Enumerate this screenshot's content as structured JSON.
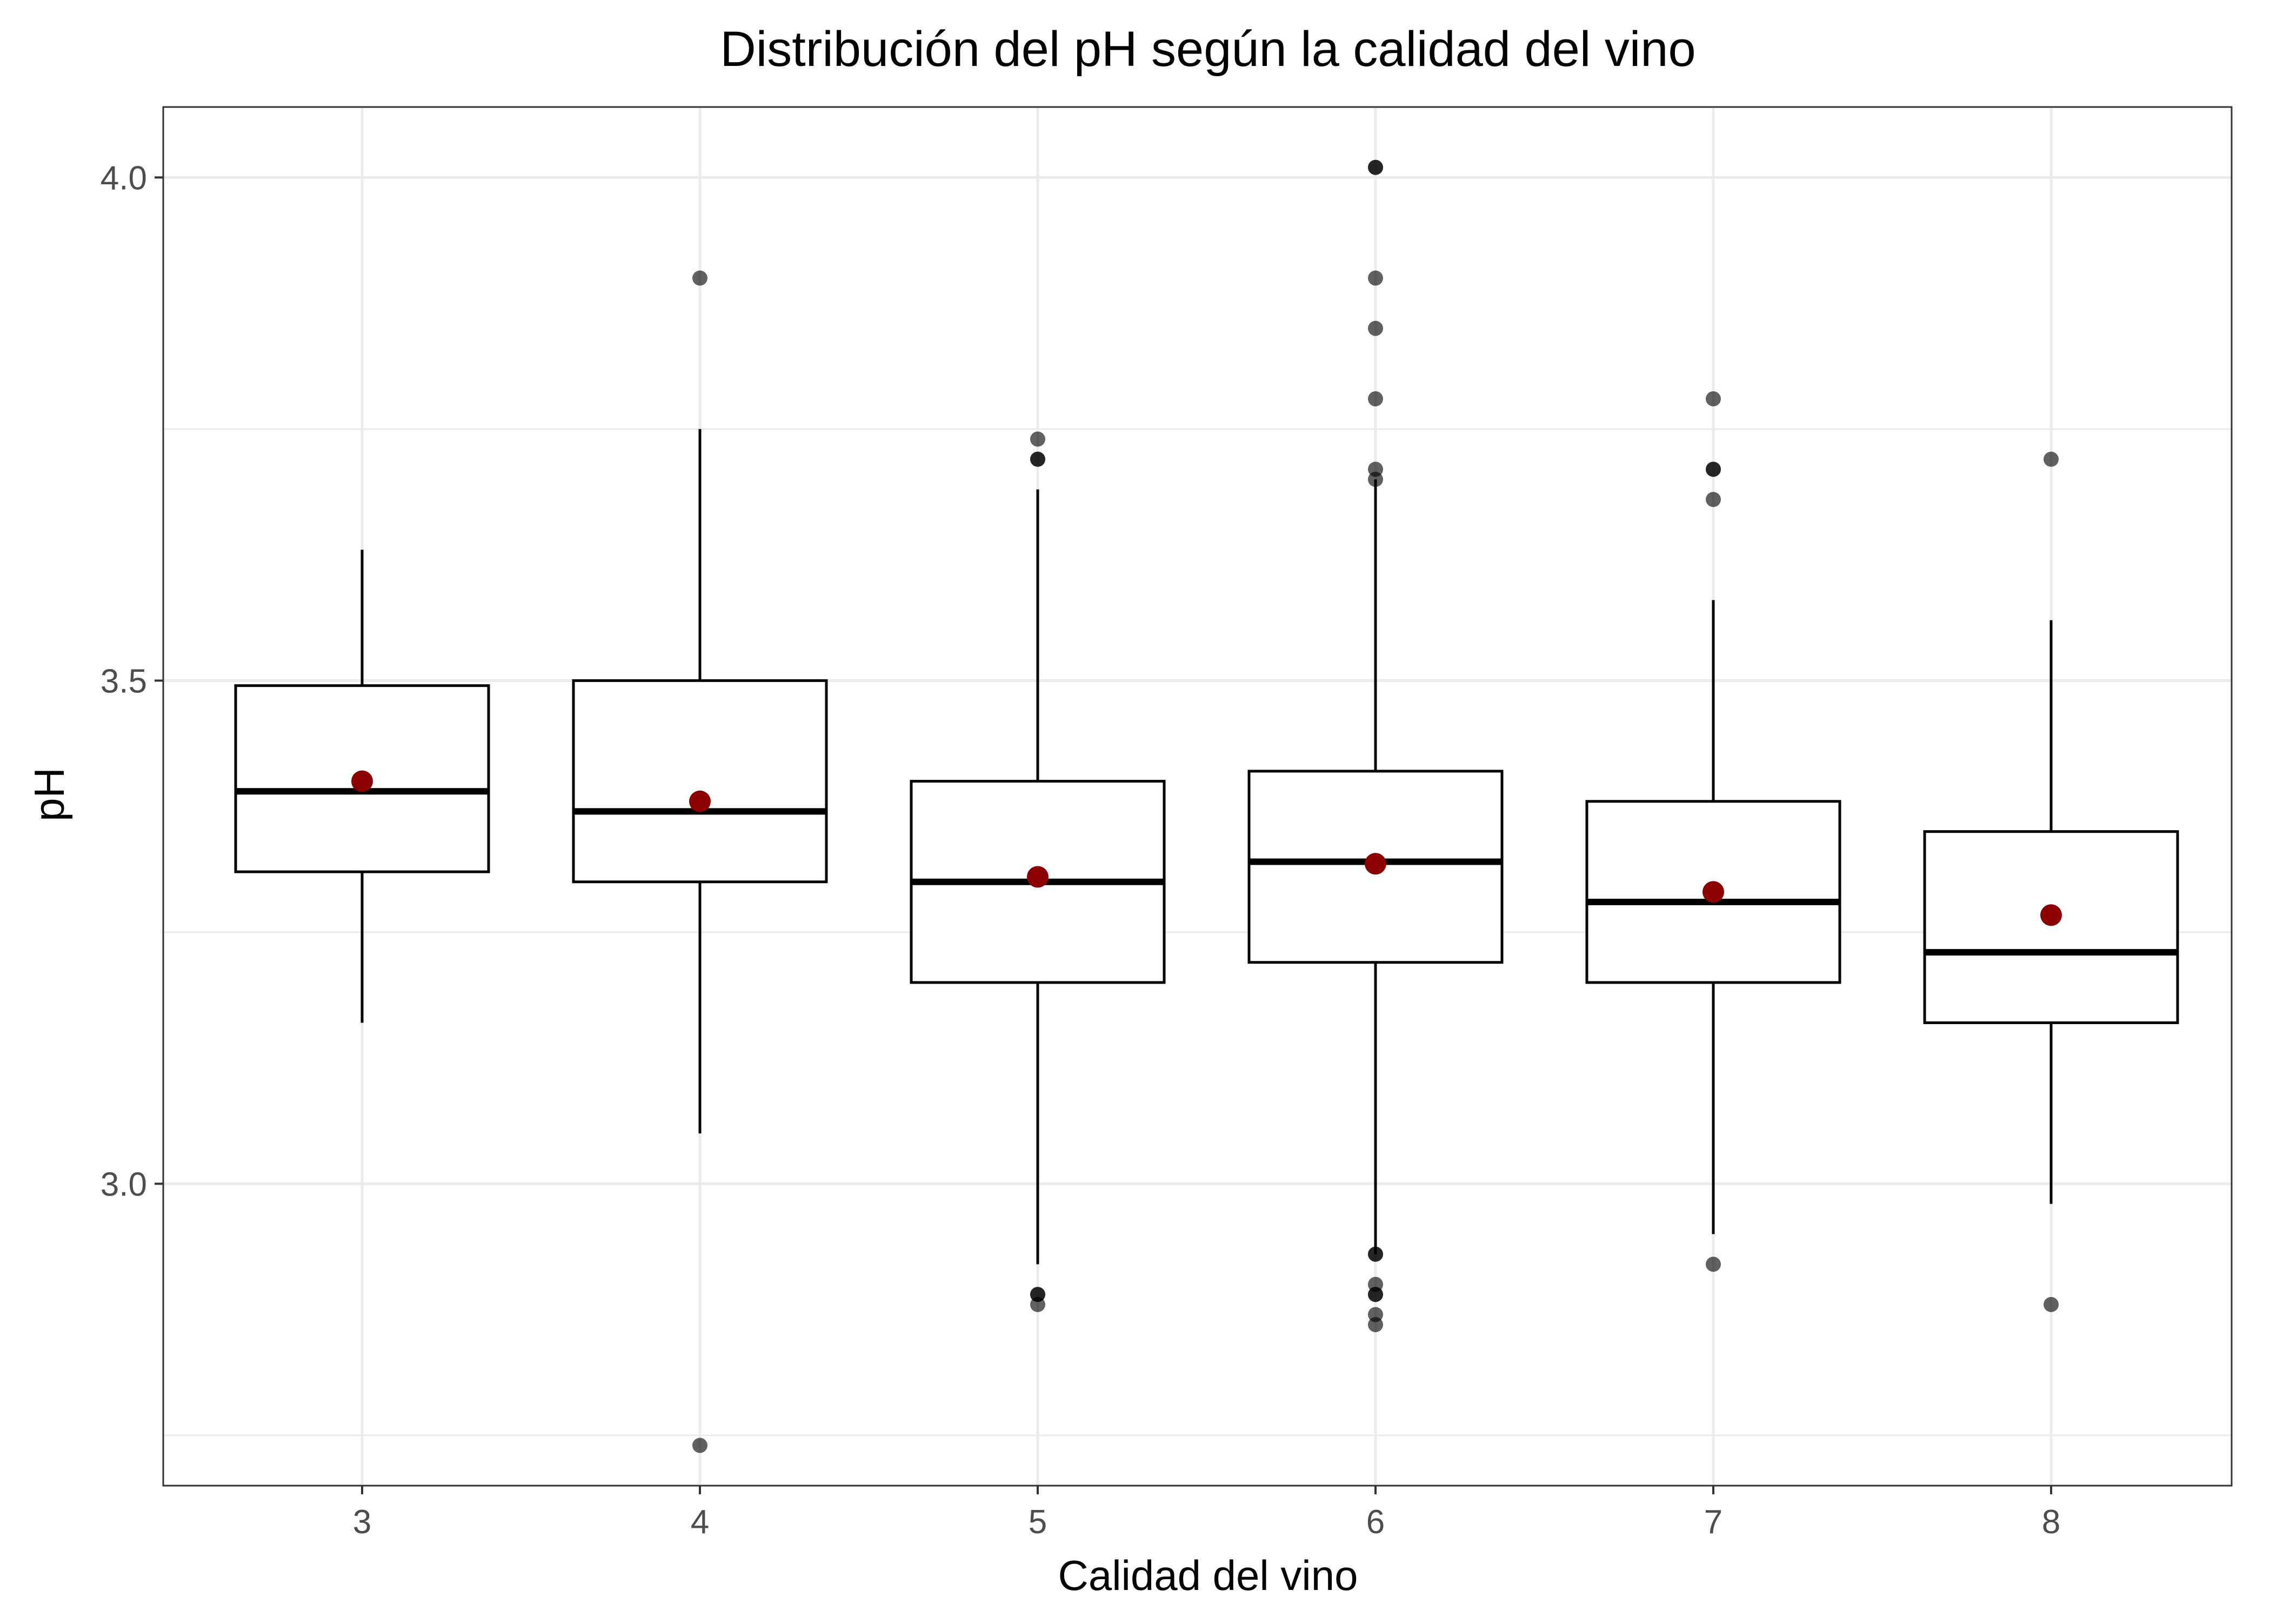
{
  "chart_data": {
    "type": "boxplot",
    "title": "Distribución del pH según la calidad del vino",
    "xlabel": "Calidad del vino",
    "ylabel": "pH",
    "categories": [
      "3",
      "4",
      "5",
      "6",
      "7",
      "8"
    ],
    "ylim": [
      2.7,
      4.07
    ],
    "yticks": [
      3.0,
      3.5,
      4.0
    ],
    "ytick_labels": [
      "3.0",
      "3.5",
      "4.0"
    ],
    "grid": true,
    "legend": "none",
    "boxes": [
      {
        "category": "3",
        "whisker_low": 3.16,
        "q1": 3.31,
        "median": 3.39,
        "q3": 3.495,
        "whisker_high": 3.63,
        "mean": 3.4,
        "outliers": []
      },
      {
        "category": "4",
        "whisker_low": 3.05,
        "q1": 3.3,
        "median": 3.37,
        "q3": 3.5,
        "whisker_high": 3.75,
        "mean": 3.38,
        "outliers": [
          2.74,
          3.9
        ]
      },
      {
        "category": "5",
        "whisker_low": 2.92,
        "q1": 3.2,
        "median": 3.3,
        "q3": 3.4,
        "whisker_high": 3.69,
        "mean": 3.305,
        "outliers": [
          2.88,
          2.89,
          2.89,
          3.72,
          3.72,
          3.74
        ]
      },
      {
        "category": "6",
        "whisker_low": 2.93,
        "q1": 3.22,
        "median": 3.32,
        "q3": 3.41,
        "whisker_high": 3.7,
        "mean": 3.318,
        "outliers": [
          2.86,
          2.87,
          2.89,
          2.89,
          2.9,
          2.93,
          2.93,
          3.7,
          3.71,
          3.78,
          3.85,
          3.9,
          4.01,
          4.01
        ]
      },
      {
        "category": "7",
        "whisker_low": 2.95,
        "q1": 3.2,
        "median": 3.28,
        "q3": 3.38,
        "whisker_high": 3.58,
        "mean": 3.29,
        "outliers": [
          2.92,
          3.68,
          3.71,
          3.71,
          3.78
        ]
      },
      {
        "category": "8",
        "whisker_low": 2.98,
        "q1": 3.16,
        "median": 3.23,
        "q3": 3.35,
        "whisker_high": 3.56,
        "mean": 3.267,
        "outliers": [
          2.88,
          3.72
        ]
      }
    ],
    "colors": {
      "mean_point": "#8b0000",
      "outlier": "#000000",
      "box_stroke": "#000000",
      "grid": "#ebebeb",
      "panel_border": "#333333"
    }
  }
}
